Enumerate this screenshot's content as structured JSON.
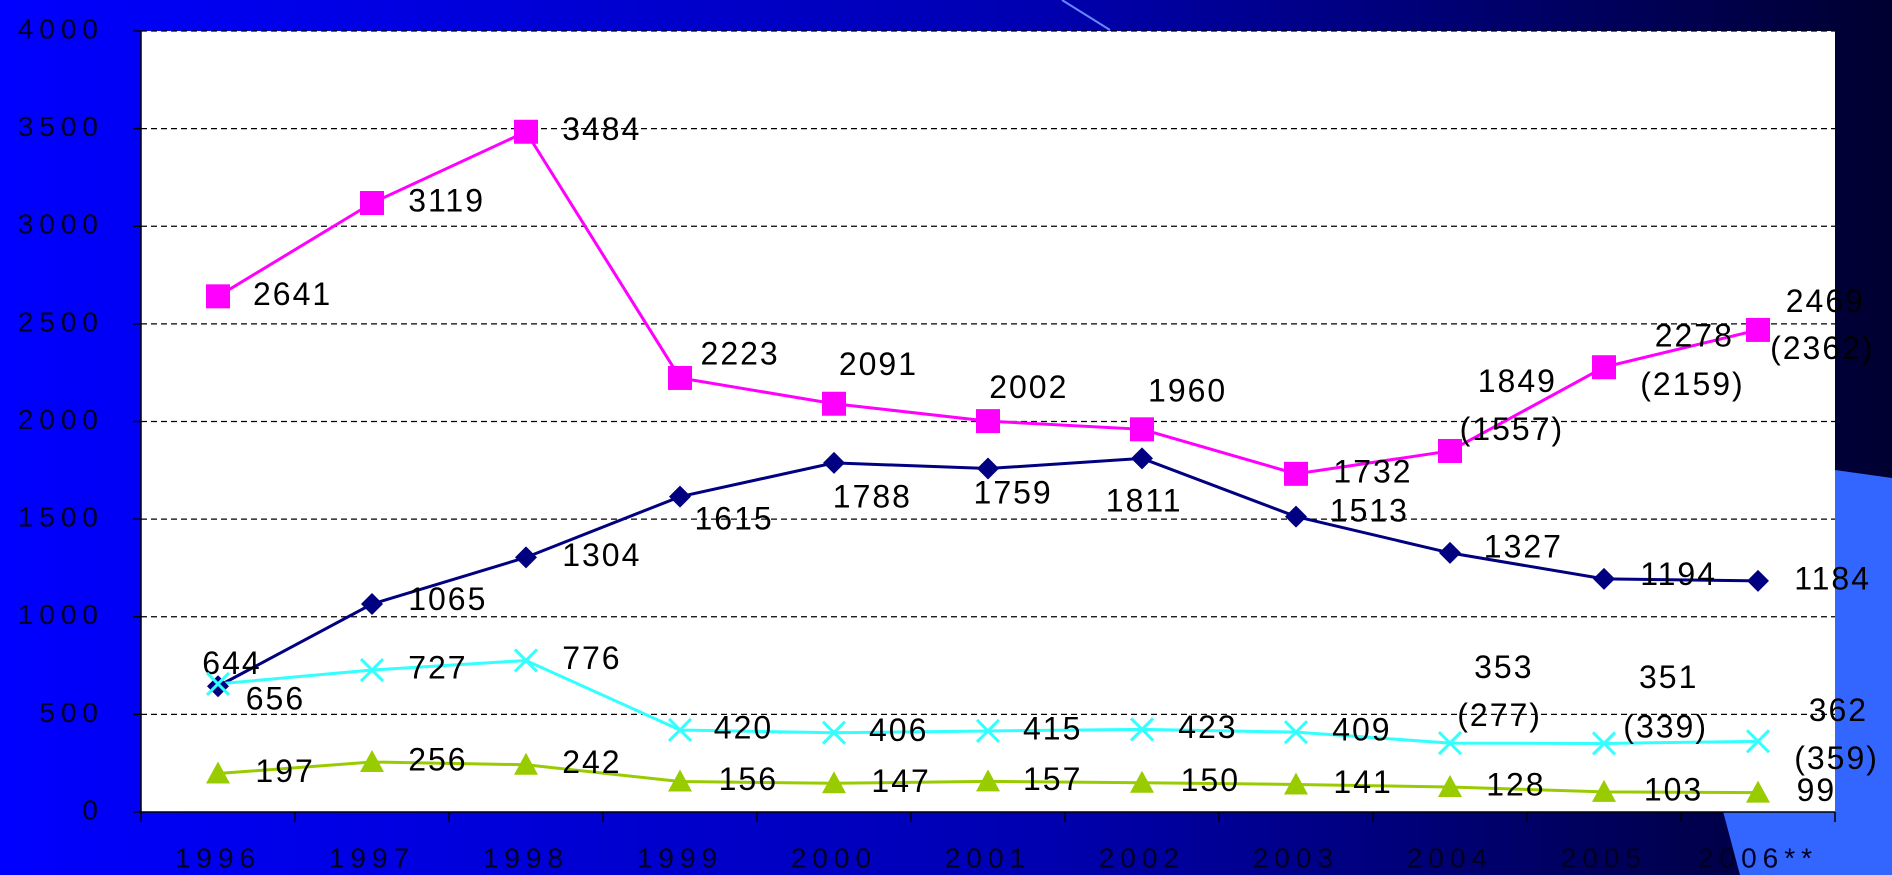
{
  "chart_data": {
    "type": "line",
    "categories": [
      "1996",
      "1997",
      "1998",
      "1999",
      "2000",
      "2001",
      "2002",
      "2003",
      "2004",
      "2005",
      "2006**"
    ],
    "series": [
      {
        "color": "#ff00ff",
        "marker": "square",
        "values": [
          2641,
          3119,
          3484,
          2223,
          2091,
          2002,
          1960,
          1732,
          1849,
          2278,
          2469
        ],
        "value_labels": [
          null,
          null,
          null,
          null,
          null,
          null,
          null,
          null,
          [
            "1849",
            "(1557)"
          ],
          [
            "2278",
            "(2159)"
          ],
          [
            "2469",
            "(2362)"
          ]
        ]
      },
      {
        "color": "#000080",
        "marker": "diamond",
        "values": [
          644,
          1065,
          1304,
          1615,
          1788,
          1759,
          1811,
          1513,
          1327,
          1194,
          1184
        ]
      },
      {
        "color": "#33ffff",
        "marker": "x",
        "values": [
          656,
          727,
          776,
          420,
          406,
          415,
          423,
          409,
          353,
          351,
          362
        ],
        "value_labels": [
          null,
          null,
          null,
          null,
          null,
          null,
          null,
          null,
          [
            "353",
            "(277)"
          ],
          [
            "351",
            "(339)"
          ],
          [
            "362",
            "(359)"
          ]
        ]
      },
      {
        "color": "#99cc00",
        "marker": "triangle",
        "values": [
          197,
          256,
          242,
          156,
          147,
          157,
          150,
          141,
          128,
          103,
          99
        ]
      }
    ],
    "ylim": [
      0,
      4000
    ],
    "yticks": [
      0,
      500,
      1000,
      1500,
      2000,
      2500,
      3000,
      3500,
      4000
    ],
    "grid": true
  }
}
